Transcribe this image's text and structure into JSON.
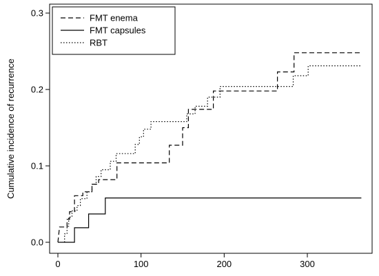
{
  "chart_data": {
    "type": "line",
    "step": true,
    "title": "",
    "xlabel": "",
    "ylabel": "Cumulative incidence of recurrence",
    "xlim": [
      0,
      365
    ],
    "ylim": [
      0,
      0.3
    ],
    "x_ticks": [
      0,
      100,
      200,
      300
    ],
    "y_ticks": [
      0.0,
      0.1,
      0.2,
      0.3
    ],
    "y_tick_labels": [
      "0.0",
      "0.1",
      "0.2",
      "0.3"
    ],
    "grid": false,
    "legend_position": "top-left",
    "series": [
      {
        "name": "FMT enema",
        "line_style": "dashed",
        "color": "#000000",
        "points": [
          [
            0,
            0
          ],
          [
            2,
            0.02
          ],
          [
            11,
            0.02
          ],
          [
            11,
            0.03
          ],
          [
            14,
            0.03
          ],
          [
            14,
            0.04
          ],
          [
            20,
            0.04
          ],
          [
            20,
            0.061
          ],
          [
            30,
            0.061
          ],
          [
            30,
            0.066
          ],
          [
            41,
            0.066
          ],
          [
            41,
            0.076
          ],
          [
            49,
            0.076
          ],
          [
            49,
            0.082
          ],
          [
            71,
            0.082
          ],
          [
            71,
            0.104
          ],
          [
            134,
            0.104
          ],
          [
            134,
            0.127
          ],
          [
            150,
            0.127
          ],
          [
            150,
            0.15
          ],
          [
            157,
            0.15
          ],
          [
            157,
            0.174
          ],
          [
            187,
            0.174
          ],
          [
            187,
            0.198
          ],
          [
            264,
            0.198
          ],
          [
            264,
            0.223
          ],
          [
            284,
            0.223
          ],
          [
            284,
            0.248
          ],
          [
            365,
            0.248
          ]
        ]
      },
      {
        "name": "FMT capsules",
        "line_style": "solid",
        "color": "#000000",
        "points": [
          [
            0,
            0
          ],
          [
            20,
            0
          ],
          [
            20,
            0.019
          ],
          [
            37,
            0.019
          ],
          [
            37,
            0.037
          ],
          [
            57,
            0.037
          ],
          [
            57,
            0.058
          ],
          [
            365,
            0.058
          ]
        ]
      },
      {
        "name": "RBT",
        "line_style": "dotted",
        "color": "#000000",
        "points": [
          [
            8,
            0
          ],
          [
            8,
            0.011
          ],
          [
            11,
            0.011
          ],
          [
            11,
            0.021
          ],
          [
            13,
            0.021
          ],
          [
            13,
            0.033
          ],
          [
            17,
            0.033
          ],
          [
            17,
            0.041
          ],
          [
            23,
            0.041
          ],
          [
            23,
            0.048
          ],
          [
            27,
            0.048
          ],
          [
            27,
            0.057
          ],
          [
            35,
            0.057
          ],
          [
            35,
            0.066
          ],
          [
            41,
            0.066
          ],
          [
            41,
            0.076
          ],
          [
            46,
            0.076
          ],
          [
            46,
            0.086
          ],
          [
            52,
            0.086
          ],
          [
            52,
            0.095
          ],
          [
            63,
            0.095
          ],
          [
            63,
            0.106
          ],
          [
            70,
            0.106
          ],
          [
            70,
            0.116
          ],
          [
            93,
            0.116
          ],
          [
            93,
            0.128
          ],
          [
            98,
            0.128
          ],
          [
            98,
            0.138
          ],
          [
            103,
            0.138
          ],
          [
            103,
            0.148
          ],
          [
            112,
            0.148
          ],
          [
            112,
            0.158
          ],
          [
            155,
            0.158
          ],
          [
            155,
            0.168
          ],
          [
            165,
            0.168
          ],
          [
            165,
            0.178
          ],
          [
            180,
            0.178
          ],
          [
            180,
            0.19
          ],
          [
            195,
            0.19
          ],
          [
            195,
            0.204
          ],
          [
            283,
            0.204
          ],
          [
            283,
            0.218
          ],
          [
            301,
            0.218
          ],
          [
            301,
            0.231
          ],
          [
            365,
            0.231
          ]
        ]
      }
    ]
  }
}
